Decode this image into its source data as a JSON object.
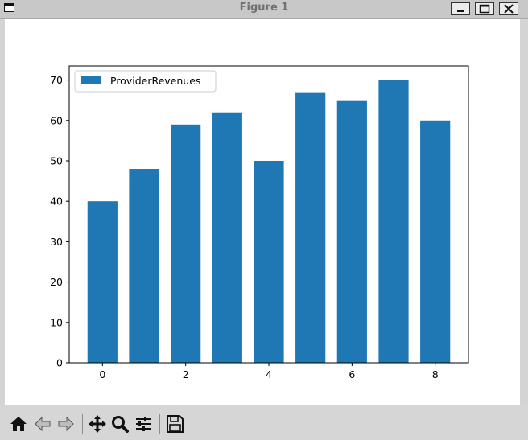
{
  "window": {
    "title": "Figure 1",
    "buttons": [
      "minimize",
      "maximize",
      "close"
    ]
  },
  "toolbar": {
    "buttons": [
      {
        "name": "home-icon",
        "tooltip": "Home"
      },
      {
        "name": "back-arrow-icon",
        "tooltip": "Back"
      },
      {
        "name": "forward-arrow-icon",
        "tooltip": "Forward"
      },
      {
        "name": "pan-icon",
        "tooltip": "Pan"
      },
      {
        "name": "zoom-icon",
        "tooltip": "Zoom"
      },
      {
        "name": "configure-subplots-icon",
        "tooltip": "Subplots"
      },
      {
        "name": "save-icon",
        "tooltip": "Save"
      }
    ]
  },
  "chart_data": {
    "type": "bar",
    "title": "",
    "xlabel": "",
    "ylabel": "",
    "x": [
      0,
      1,
      2,
      3,
      4,
      5,
      6,
      7,
      8
    ],
    "series": [
      {
        "name": "ProviderRevenues",
        "values": [
          40,
          48,
          59,
          62,
          50,
          67,
          65,
          70,
          60
        ],
        "color": "#1f77b4"
      }
    ],
    "xticks": [
      0,
      2,
      4,
      6,
      8
    ],
    "yticks": [
      0,
      10,
      20,
      30,
      40,
      50,
      60,
      70
    ],
    "xlim": [
      -0.8,
      8.8
    ],
    "ylim": [
      0,
      73.5
    ],
    "bar_width": 0.72,
    "legend": {
      "location": "upper-left",
      "entries": [
        "ProviderRevenues"
      ]
    },
    "grid": false
  }
}
